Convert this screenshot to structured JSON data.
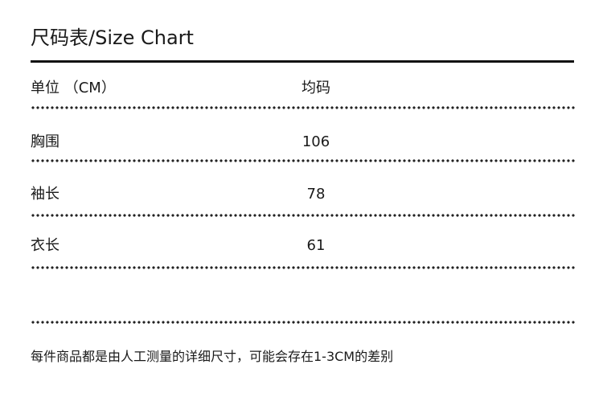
{
  "title": "尺码表/Size Chart",
  "header": {
    "label": "单位 （CM）",
    "value": "均码"
  },
  "rows": [
    {
      "label": "胸围",
      "value": "106"
    },
    {
      "label": "袖长",
      "value": "78"
    },
    {
      "label": "衣长",
      "value": "61"
    }
  ],
  "note": "每件商品都是由人工测量的详细尺寸，可能会存在1-3CM的差别"
}
